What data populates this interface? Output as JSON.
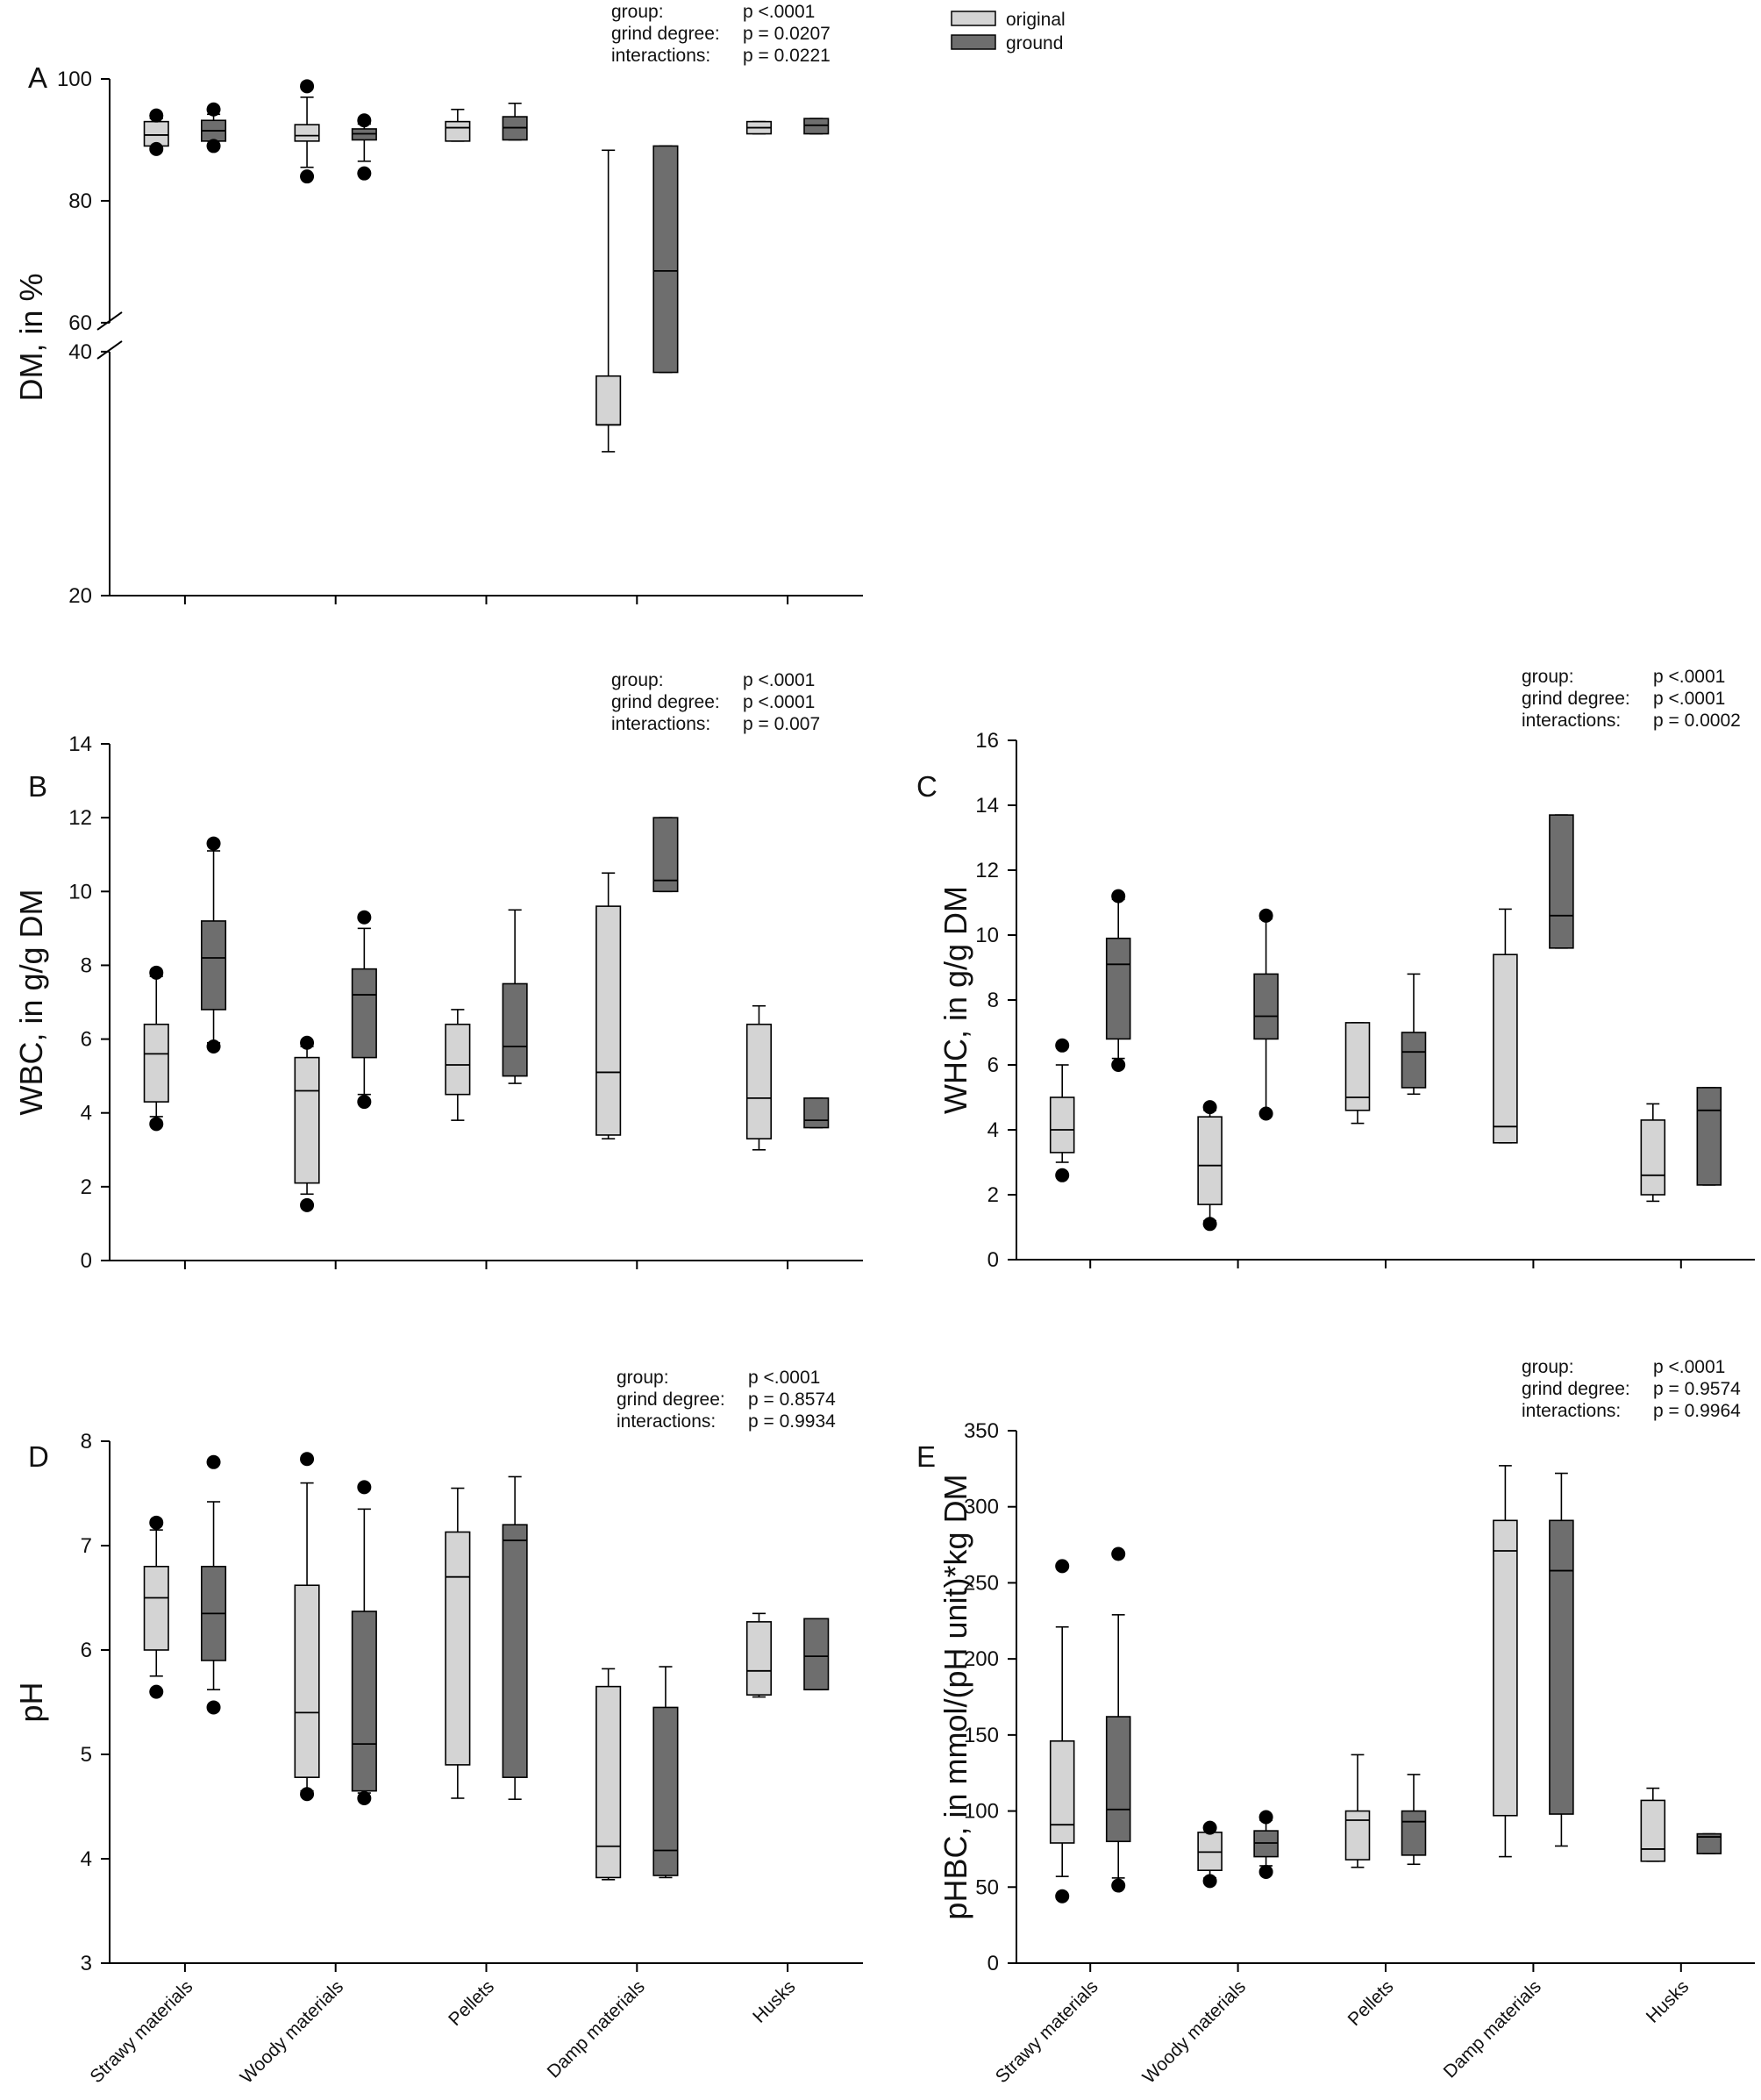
{
  "legend": {
    "items": [
      {
        "label": "original",
        "color": "#d4d4d4"
      },
      {
        "label": "ground",
        "color": "#6e6e6e"
      }
    ]
  },
  "colors": {
    "original": "#d4d4d4",
    "ground": "#6e6e6e",
    "axis": "#000000"
  },
  "chart_data": [
    {
      "panel": "A",
      "type": "box",
      "ylabel": "DM, in %",
      "ylim": [
        20,
        100
      ],
      "yticks": [
        20,
        40,
        60,
        80,
        100
      ],
      "axis_break": [
        40,
        60
      ],
      "categories": [
        "Strawy materials",
        "Woody materials",
        "Pellets",
        "Damp materials",
        "Husks"
      ],
      "show_category_labels": false,
      "stats": {
        "group": "p   <.0001",
        "grind_degree": "p = 0.0207",
        "interactions": "p = 0.0221"
      },
      "series": [
        {
          "name": "original",
          "boxes": [
            {
              "wlo": 89,
              "q1": 89,
              "med": 90.8,
              "q3": 93,
              "whi": 93.5,
              "out": [
                88.5,
                94
              ]
            },
            {
              "wlo": 85.5,
              "q1": 89.8,
              "med": 90.7,
              "q3": 92.5,
              "whi": 97,
              "out": [
                84,
                98.8
              ]
            },
            {
              "wlo": 89.8,
              "q1": 89.8,
              "med": 92,
              "q3": 93,
              "whi": 95,
              "out": []
            },
            {
              "wlo": 31.8,
              "q1": 34,
              "med": 34,
              "q3": 38,
              "whi": 88.3,
              "out": []
            },
            {
              "wlo": 91,
              "q1": 91,
              "med": 92,
              "q3": 93,
              "whi": 93,
              "out": []
            }
          ]
        },
        {
          "name": "ground",
          "boxes": [
            {
              "wlo": 89.8,
              "q1": 89.8,
              "med": 91.5,
              "q3": 93.2,
              "whi": 94.2,
              "out": [
                89,
                95
              ]
            },
            {
              "wlo": 86.5,
              "q1": 90,
              "med": 91,
              "q3": 91.8,
              "whi": 92.6,
              "out": [
                84.5,
                93.2
              ]
            },
            {
              "wlo": 90,
              "q1": 90,
              "med": 92,
              "q3": 93.8,
              "whi": 96,
              "out": []
            },
            {
              "wlo": 38.3,
              "q1": 38.3,
              "med": 68.5,
              "q3": 89,
              "whi": 89,
              "out": []
            },
            {
              "wlo": 91,
              "q1": 91,
              "med": 92.4,
              "q3": 93.5,
              "whi": 93.5,
              "out": []
            }
          ]
        }
      ]
    },
    {
      "panel": "B",
      "type": "box",
      "ylabel": "WBC, in g/g DM",
      "ylim": [
        0,
        14
      ],
      "yticks": [
        0,
        2,
        4,
        6,
        8,
        10,
        12,
        14
      ],
      "categories": [
        "Strawy materials",
        "Woody materials",
        "Pellets",
        "Damp materials",
        "Husks"
      ],
      "show_category_labels": false,
      "stats": {
        "group": "p   <.0001",
        "grind_degree": "p   <.0001",
        "interactions": "p = 0.007"
      },
      "series": [
        {
          "name": "original",
          "boxes": [
            {
              "wlo": 3.9,
              "q1": 4.3,
              "med": 5.6,
              "q3": 6.4,
              "whi": 7.7,
              "out": [
                3.7,
                7.8
              ]
            },
            {
              "wlo": 1.8,
              "q1": 2.1,
              "med": 4.6,
              "q3": 5.5,
              "whi": 5.8,
              "out": [
                1.5,
                5.9
              ]
            },
            {
              "wlo": 3.8,
              "q1": 4.5,
              "med": 5.3,
              "q3": 6.4,
              "whi": 6.8,
              "out": []
            },
            {
              "wlo": 3.3,
              "q1": 3.4,
              "med": 5.1,
              "q3": 9.6,
              "whi": 10.5,
              "out": []
            },
            {
              "wlo": 3.0,
              "q1": 3.3,
              "med": 4.4,
              "q3": 6.4,
              "whi": 6.9,
              "out": []
            }
          ]
        },
        {
          "name": "ground",
          "boxes": [
            {
              "wlo": 5.9,
              "q1": 6.8,
              "med": 8.2,
              "q3": 9.2,
              "whi": 11.1,
              "out": [
                5.8,
                11.3
              ]
            },
            {
              "wlo": 4.5,
              "q1": 5.5,
              "med": 7.2,
              "q3": 7.9,
              "whi": 9.0,
              "out": [
                4.3,
                9.3
              ]
            },
            {
              "wlo": 4.8,
              "q1": 5.0,
              "med": 5.8,
              "q3": 7.5,
              "whi": 9.5,
              "out": []
            },
            {
              "wlo": 10.0,
              "q1": 10.0,
              "med": 10.3,
              "q3": 12.0,
              "whi": 12.0,
              "out": []
            },
            {
              "wlo": 3.6,
              "q1": 3.6,
              "med": 3.8,
              "q3": 4.4,
              "whi": 4.4,
              "out": []
            }
          ]
        }
      ]
    },
    {
      "panel": "C",
      "type": "box",
      "ylabel": "WHC, in g/g DM",
      "ylim": [
        0,
        16
      ],
      "yticks": [
        0,
        2,
        4,
        6,
        8,
        10,
        12,
        14,
        16
      ],
      "categories": [
        "Strawy materials",
        "Woody materials",
        "Pellets",
        "Damp materials",
        "Husks"
      ],
      "show_category_labels": false,
      "stats": {
        "group": "p   <.0001",
        "grind_degree": "p   <.0001",
        "interactions": "p = 0.0002"
      },
      "series": [
        {
          "name": "original",
          "boxes": [
            {
              "wlo": 3.0,
              "q1": 3.3,
              "med": 4.0,
              "q3": 5.0,
              "whi": 6.0,
              "out": [
                2.6,
                6.6
              ]
            },
            {
              "wlo": 1.2,
              "q1": 1.7,
              "med": 2.9,
              "q3": 4.4,
              "whi": 4.6,
              "out": [
                1.1,
                4.7
              ]
            },
            {
              "wlo": 4.2,
              "q1": 4.6,
              "med": 5.0,
              "q3": 7.3,
              "whi": 7.3,
              "out": []
            },
            {
              "wlo": 3.6,
              "q1": 3.6,
              "med": 4.1,
              "q3": 9.4,
              "whi": 10.8,
              "out": []
            },
            {
              "wlo": 1.8,
              "q1": 2.0,
              "med": 2.6,
              "q3": 4.3,
              "whi": 4.8,
              "out": []
            }
          ]
        },
        {
          "name": "ground",
          "boxes": [
            {
              "wlo": 6.2,
              "q1": 6.8,
              "med": 9.1,
              "q3": 9.9,
              "whi": 11.1,
              "out": [
                6.0,
                11.2
              ]
            },
            {
              "wlo": 4.5,
              "q1": 6.8,
              "med": 7.5,
              "q3": 8.8,
              "whi": 10.5,
              "out": [
                4.5,
                10.6
              ]
            },
            {
              "wlo": 5.1,
              "q1": 5.3,
              "med": 6.4,
              "q3": 7.0,
              "whi": 8.8,
              "out": []
            },
            {
              "wlo": 9.6,
              "q1": 9.6,
              "med": 10.6,
              "q3": 13.7,
              "whi": 13.7,
              "out": []
            },
            {
              "wlo": 2.3,
              "q1": 2.3,
              "med": 4.6,
              "q3": 5.3,
              "whi": 5.3,
              "out": []
            }
          ]
        }
      ]
    },
    {
      "panel": "D",
      "type": "box",
      "ylabel": "pH",
      "ylim": [
        3,
        8
      ],
      "yticks": [
        3,
        4,
        5,
        6,
        7,
        8
      ],
      "categories": [
        "Strawy materials",
        "Woody materials",
        "Pellets",
        "Damp materials",
        "Husks"
      ],
      "show_category_labels": true,
      "stats": {
        "group": "p   <.0001",
        "grind_degree": "p = 0.8574",
        "interactions": "p = 0.9934"
      },
      "series": [
        {
          "name": "original",
          "boxes": [
            {
              "wlo": 5.75,
              "q1": 6.0,
              "med": 6.5,
              "q3": 6.8,
              "whi": 7.15,
              "out": [
                5.6,
                7.22
              ]
            },
            {
              "wlo": 4.65,
              "q1": 4.78,
              "med": 5.4,
              "q3": 6.62,
              "whi": 7.6,
              "out": [
                4.62,
                7.83
              ]
            },
            {
              "wlo": 4.58,
              "q1": 4.9,
              "med": 6.7,
              "q3": 7.13,
              "whi": 7.55,
              "out": []
            },
            {
              "wlo": 3.8,
              "q1": 3.82,
              "med": 4.12,
              "q3": 5.65,
              "whi": 5.82,
              "out": []
            },
            {
              "wlo": 5.55,
              "q1": 5.57,
              "med": 5.8,
              "q3": 6.27,
              "whi": 6.35,
              "out": []
            }
          ]
        },
        {
          "name": "ground",
          "boxes": [
            {
              "wlo": 5.62,
              "q1": 5.9,
              "med": 6.35,
              "q3": 6.8,
              "whi": 7.42,
              "out": [
                5.45,
                7.8
              ]
            },
            {
              "wlo": 4.63,
              "q1": 4.65,
              "med": 5.1,
              "q3": 6.37,
              "whi": 7.35,
              "out": [
                4.58,
                7.56
              ]
            },
            {
              "wlo": 4.57,
              "q1": 4.78,
              "med": 7.05,
              "q3": 7.2,
              "whi": 7.66,
              "out": []
            },
            {
              "wlo": 3.82,
              "q1": 3.84,
              "med": 4.08,
              "q3": 5.45,
              "whi": 5.84,
              "out": []
            },
            {
              "wlo": 5.62,
              "q1": 5.62,
              "med": 5.94,
              "q3": 6.3,
              "whi": 6.3,
              "out": []
            }
          ]
        }
      ]
    },
    {
      "panel": "E",
      "type": "box",
      "ylabel": "pHBC, in mmol/(pH unit)*kg DM",
      "ylim": [
        0,
        350
      ],
      "yticks": [
        0,
        50,
        100,
        150,
        200,
        250,
        300,
        350
      ],
      "categories": [
        "Strawy materials",
        "Woody materials",
        "Pellets",
        "Damp materials",
        "Husks"
      ],
      "show_category_labels": true,
      "stats": {
        "group": "p   <.0001",
        "grind_degree": "p = 0.9574",
        "interactions": "p = 0.9964"
      },
      "series": [
        {
          "name": "original",
          "boxes": [
            {
              "wlo": 57,
              "q1": 79,
              "med": 91,
              "q3": 146,
              "whi": 221,
              "out": [
                44,
                261
              ]
            },
            {
              "wlo": 56,
              "q1": 61,
              "med": 73,
              "q3": 86,
              "whi": 88,
              "out": [
                54,
                89
              ]
            },
            {
              "wlo": 63,
              "q1": 68,
              "med": 94,
              "q3": 100,
              "whi": 137,
              "out": []
            },
            {
              "wlo": 70,
              "q1": 97,
              "med": 271,
              "q3": 291,
              "whi": 327,
              "out": []
            },
            {
              "wlo": 67,
              "q1": 67,
              "med": 75,
              "q3": 107,
              "whi": 115,
              "out": []
            }
          ]
        },
        {
          "name": "ground",
          "boxes": [
            {
              "wlo": 56,
              "q1": 80,
              "med": 101,
              "q3": 162,
              "whi": 229,
              "out": [
                51,
                269
              ]
            },
            {
              "wlo": 64,
              "q1": 70,
              "med": 79,
              "q3": 87,
              "whi": 94,
              "out": [
                60,
                96
              ]
            },
            {
              "wlo": 65,
              "q1": 71,
              "med": 93,
              "q3": 100,
              "whi": 124,
              "out": []
            },
            {
              "wlo": 77,
              "q1": 98,
              "med": 258,
              "q3": 291,
              "whi": 322,
              "out": []
            },
            {
              "wlo": 72,
              "q1": 72,
              "med": 83,
              "q3": 85,
              "whi": 85,
              "out": []
            }
          ]
        }
      ]
    }
  ]
}
